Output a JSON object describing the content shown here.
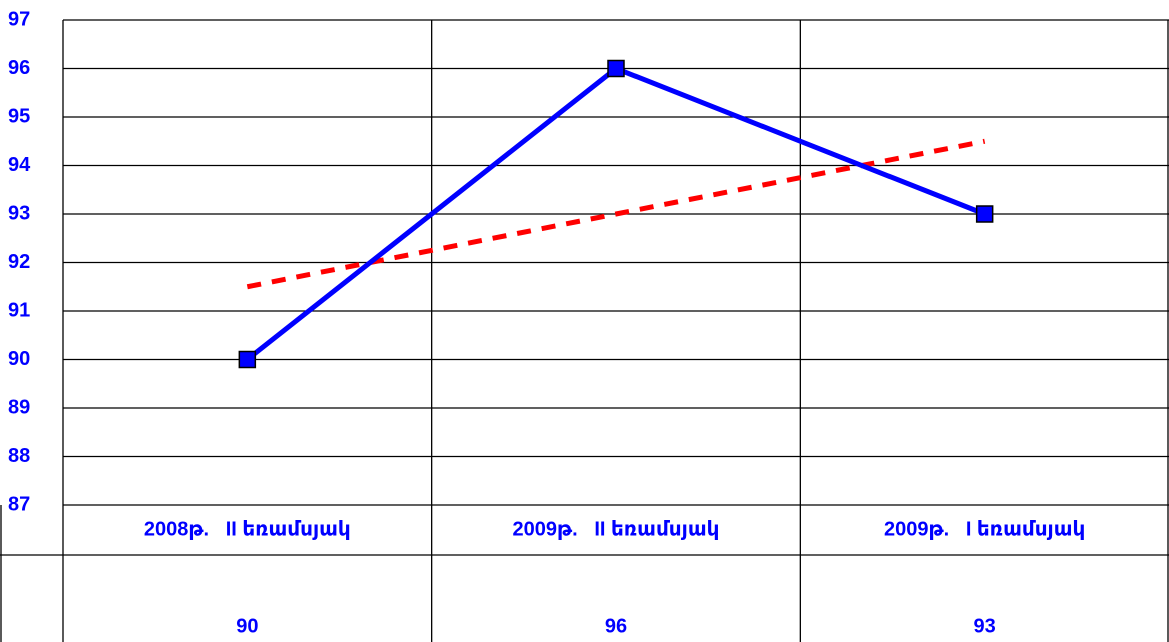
{
  "chart_data": {
    "type": "line",
    "categories": [
      "2008թ.   II եռամսյակ",
      "2009թ.   II եռամսյակ",
      "2009թ.   I եռամսյակ"
    ],
    "series": [
      {
        "color": "#0000ff",
        "values": [
          90,
          96,
          93
        ]
      },
      {
        "color": "#ff0000",
        "values": [
          91.5,
          93,
          94.5
        ],
        "dashed": true
      }
    ],
    "ylim": [
      87,
      97
    ],
    "yticks": [
      87,
      88,
      89,
      90,
      91,
      92,
      93,
      94,
      95,
      96,
      97
    ],
    "grid": true
  }
}
